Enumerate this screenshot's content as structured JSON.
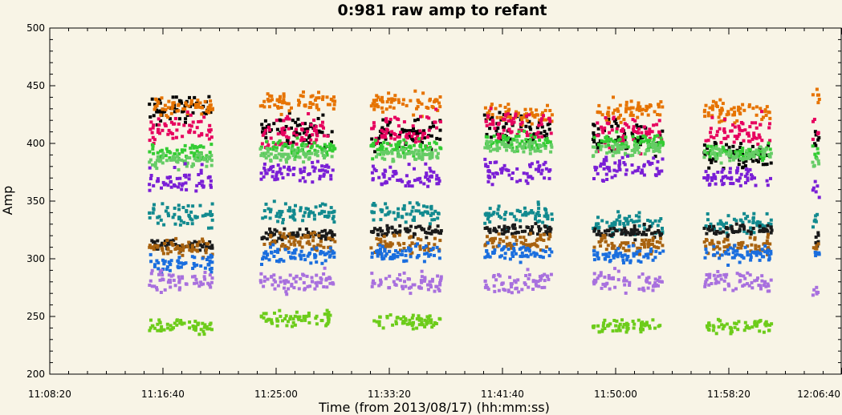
{
  "chart_data": {
    "type": "scatter",
    "title": "0:981 raw amp to refant",
    "xlabel": "Time (from 2013/08/17) (hh:mm:ss)",
    "ylabel": "Amp",
    "xlim": [
      "11:08:20",
      "12:06:40"
    ],
    "ylim": [
      200,
      500
    ],
    "x_ticks": [
      "11:08:20",
      "11:16:40",
      "11:25:00",
      "11:33:20",
      "11:41:40",
      "11:50:00",
      "11:58:20",
      "12:06:40"
    ],
    "y_ticks": [
      200,
      250,
      300,
      350,
      400,
      450,
      500
    ],
    "grid": false,
    "legend": "none",
    "scans": [
      {
        "start": "11:15:40",
        "end": "11:20:20"
      },
      {
        "start": "11:23:50",
        "end": "11:29:20"
      },
      {
        "start": "11:32:00",
        "end": "11:37:10"
      },
      {
        "start": "11:40:20",
        "end": "11:45:20"
      },
      {
        "start": "11:48:20",
        "end": "11:53:30"
      },
      {
        "start": "11:56:30",
        "end": "12:01:30"
      },
      {
        "start": "12:04:30",
        "end": "12:05:00"
      }
    ],
    "series": [
      {
        "color": "#000000",
        "band_centers": [
          430,
          410,
          408,
          415,
          405,
          388,
          405
        ],
        "spread": 15
      },
      {
        "color": "#e67300",
        "band_centers": [
          432,
          436,
          435,
          426,
          428,
          428,
          438
        ],
        "spread": 10
      },
      {
        "color": "#e6005e",
        "band_centers": [
          412,
          410,
          412,
          415,
          410,
          408,
          412
        ],
        "spread": 16
      },
      {
        "color": "#33cc33",
        "band_centers": [
          392,
          396,
          396,
          402,
          402,
          392,
          392
        ],
        "spread": 8
      },
      {
        "color": "#66cc66",
        "band_centers": [
          385,
          390,
          390,
          398,
          395,
          390,
          385
        ],
        "spread": 7
      },
      {
        "color": "#7a1fd6",
        "band_centers": [
          368,
          375,
          372,
          375,
          378,
          370,
          365
        ],
        "spread": 12
      },
      {
        "color": "#128a8f",
        "band_centers": [
          338,
          340,
          340,
          338,
          330,
          330,
          335
        ],
        "spread": 10
      },
      {
        "color": "#1a1a1a",
        "band_centers": [
          312,
          320,
          325,
          325,
          323,
          325,
          318
        ],
        "spread": 6
      },
      {
        "color": "#a8620f",
        "band_centers": [
          310,
          315,
          312,
          315,
          313,
          312,
          312
        ],
        "spread": 9
      },
      {
        "color": "#1a6ede",
        "band_centers": [
          296,
          304,
          305,
          305,
          303,
          304,
          302
        ],
        "spread": 8
      },
      {
        "color": "#a870de",
        "band_centers": [
          280,
          280,
          280,
          280,
          280,
          280,
          270
        ],
        "spread": 10
      },
      {
        "color": "#6dcc1a",
        "band_centers": [
          242,
          248,
          246,
          null,
          242,
          242,
          null
        ],
        "spread": 7
      }
    ]
  }
}
